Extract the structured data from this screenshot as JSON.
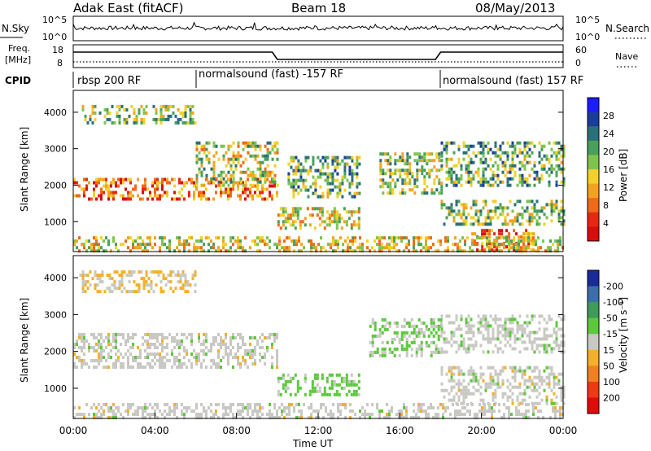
{
  "header": {
    "title_left": "Adak East (fitACF)",
    "title_center": "Beam 18",
    "title_right": "08/May/2013"
  },
  "top_panels": {
    "nsky_label": "N.Sky",
    "nsky_ticks": [
      "10^5",
      "10^0"
    ],
    "nsearch_label": "N.Search",
    "freq_label_1": "Freq.",
    "freq_label_2": "[MHz]",
    "freq_ticks": [
      "18",
      "8"
    ],
    "nave_ticks": [
      "60",
      "0"
    ],
    "nave_label": "Nave",
    "cpid_label": "CPID",
    "cpid_segments": [
      {
        "label": "rbsp 200 RF",
        "start_hour": 0,
        "end_hour": 6
      },
      {
        "label": "normalsound (fast) -157 RF",
        "start_hour": 6,
        "end_hour": 18
      },
      {
        "label": "normalsound (fast) 157 RF",
        "start_hour": 18,
        "end_hour": 24
      }
    ]
  },
  "chart_data": [
    {
      "type": "heatmap",
      "name": "power",
      "ylabel": "Slant Range [km]",
      "yticks": [
        1000,
        2000,
        3000,
        4000
      ],
      "ylim": [
        180,
        4600
      ],
      "xlim": [
        0,
        24
      ],
      "colorbar": {
        "label": "Power [dB]",
        "ticks": [
          "4",
          "8",
          "12",
          "16",
          "20",
          "24",
          "28"
        ],
        "colors": [
          "#1c1cff",
          "#1a3c9a",
          "#2b6f78",
          "#49a05a",
          "#7fc34d",
          "#f1d12a",
          "#f4a21e",
          "#f06a17",
          "#e62a12",
          "#d70e0e"
        ]
      },
      "regions": [
        {
          "t0": 0.3,
          "t1": 6.0,
          "r0": 3700,
          "r1": 4200,
          "level": 0.45
        },
        {
          "t0": 0.0,
          "t1": 10.0,
          "r0": 1600,
          "r1": 2200,
          "level": 0.75
        },
        {
          "t0": 6.0,
          "t1": 10.0,
          "r0": 2000,
          "r1": 3200,
          "level": 0.5
        },
        {
          "t0": 10.0,
          "t1": 14.0,
          "r0": 800,
          "r1": 1400,
          "level": 0.55
        },
        {
          "t0": 10.5,
          "t1": 14.0,
          "r0": 1700,
          "r1": 2800,
          "level": 0.4
        },
        {
          "t0": 15.0,
          "t1": 18.0,
          "r0": 1800,
          "r1": 2900,
          "level": 0.45
        },
        {
          "t0": 18.0,
          "t1": 24.0,
          "r0": 900,
          "r1": 1600,
          "level": 0.45
        },
        {
          "t0": 18.0,
          "t1": 24.0,
          "r0": 2000,
          "r1": 3200,
          "level": 0.4
        },
        {
          "t0": 19.5,
          "t1": 22.5,
          "r0": 200,
          "r1": 800,
          "level": 0.75
        },
        {
          "t0": 0.0,
          "t1": 24.0,
          "r0": 200,
          "r1": 600,
          "level": 0.55
        }
      ]
    },
    {
      "type": "heatmap",
      "name": "velocity",
      "xlabel": "Time UT",
      "xticks": [
        "00:00",
        "04:00",
        "08:00",
        "12:00",
        "16:00",
        "20:00",
        "00:00"
      ],
      "ylabel": "Slant Range [km]",
      "yticks": [
        1000,
        2000,
        3000,
        4000
      ],
      "ylim": [
        180,
        4600
      ],
      "xlim": [
        0,
        24
      ],
      "colorbar": {
        "label": "Velocity [m s⁻¹]",
        "ticks": [
          "200",
          "100",
          "50",
          "15",
          "-15",
          "-50",
          "-100",
          "-200"
        ],
        "colors": [
          "#1a2a9a",
          "#3c6fa8",
          "#3f9a5c",
          "#5cc83c",
          "#c9c8c3",
          "#f4b028",
          "#f2801e",
          "#ec3a14",
          "#e00c0c"
        ]
      },
      "regions": [
        {
          "t0": 0.3,
          "t1": 6.0,
          "r0": 3600,
          "r1": 4200,
          "v": -30
        },
        {
          "t0": 0.0,
          "t1": 10.0,
          "r0": 1600,
          "r1": 2500,
          "v": 0
        },
        {
          "t0": 10.0,
          "t1": 14.0,
          "r0": 800,
          "r1": 1400,
          "v": 40
        },
        {
          "t0": 14.5,
          "t1": 18.0,
          "r0": 1900,
          "r1": 2900,
          "v": 30
        },
        {
          "t0": 18.0,
          "t1": 24.0,
          "r0": 600,
          "r1": 1600,
          "v": 0
        },
        {
          "t0": 18.0,
          "t1": 24.0,
          "r0": 2000,
          "r1": 3000,
          "v": 5
        },
        {
          "t0": 0.0,
          "t1": 24.0,
          "r0": 200,
          "r1": 600,
          "v": 0
        }
      ]
    }
  ]
}
